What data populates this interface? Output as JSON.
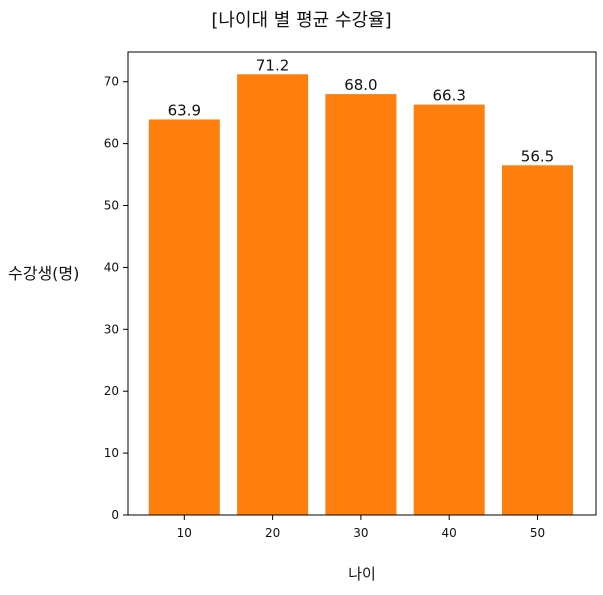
{
  "chart_data": {
    "type": "bar",
    "title": "[나이대 별 평균 수강율]",
    "xlabel": "나이",
    "ylabel": "수강생(명)",
    "categories": [
      "10",
      "20",
      "30",
      "40",
      "50"
    ],
    "values": [
      63.9,
      71.2,
      68.0,
      66.3,
      56.5
    ],
    "data_labels": [
      "63.9",
      "71.2",
      "68.0",
      "66.3",
      "56.5"
    ],
    "yticks": [
      0,
      10,
      20,
      30,
      40,
      50,
      60,
      70
    ],
    "ylim": [
      0,
      74.8
    ],
    "bar_color": "#ff7f0e",
    "grid": false,
    "legend": "none"
  }
}
